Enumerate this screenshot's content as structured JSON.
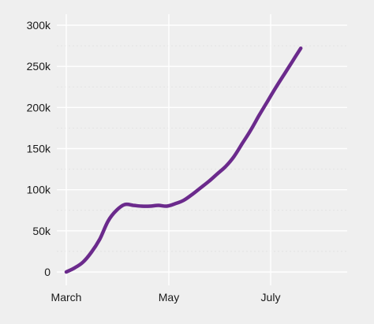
{
  "chart_data": {
    "type": "line",
    "x_tick_labels": [
      "March",
      "May",
      "July"
    ],
    "y_tick_labels": [
      "0",
      "50k",
      "100k",
      "150k",
      "200k",
      "250k",
      "300k"
    ],
    "y_ticks": [
      0,
      50000,
      100000,
      150000,
      200000,
      250000,
      300000
    ],
    "ylim": [
      0,
      300000
    ],
    "grid": true,
    "line_color": "#6b2a8c",
    "background_color": "#efefef",
    "series": [
      {
        "points": [
          {
            "x": "2020-03-01",
            "y": 0
          },
          {
            "x": "2020-03-06",
            "y": 5000
          },
          {
            "x": "2020-03-11",
            "y": 12000
          },
          {
            "x": "2020-03-16",
            "y": 24000
          },
          {
            "x": "2020-03-21",
            "y": 40000
          },
          {
            "x": "2020-03-26",
            "y": 62000
          },
          {
            "x": "2020-03-31",
            "y": 75000
          },
          {
            "x": "2020-04-05",
            "y": 82000
          },
          {
            "x": "2020-04-10",
            "y": 81000
          },
          {
            "x": "2020-04-15",
            "y": 80000
          },
          {
            "x": "2020-04-20",
            "y": 80000
          },
          {
            "x": "2020-04-25",
            "y": 81000
          },
          {
            "x": "2020-04-30",
            "y": 80000
          },
          {
            "x": "2020-05-05",
            "y": 83000
          },
          {
            "x": "2020-05-10",
            "y": 87000
          },
          {
            "x": "2020-05-15",
            "y": 94000
          },
          {
            "x": "2020-05-20",
            "y": 102000
          },
          {
            "x": "2020-05-25",
            "y": 110000
          },
          {
            "x": "2020-05-30",
            "y": 119000
          },
          {
            "x": "2020-06-04",
            "y": 128000
          },
          {
            "x": "2020-06-09",
            "y": 140000
          },
          {
            "x": "2020-06-14",
            "y": 156000
          },
          {
            "x": "2020-06-19",
            "y": 172000
          },
          {
            "x": "2020-06-24",
            "y": 190000
          },
          {
            "x": "2020-06-29",
            "y": 207000
          },
          {
            "x": "2020-07-04",
            "y": 224000
          },
          {
            "x": "2020-07-09",
            "y": 240000
          },
          {
            "x": "2020-07-14",
            "y": 256000
          },
          {
            "x": "2020-07-19",
            "y": 272000
          }
        ]
      }
    ]
  }
}
